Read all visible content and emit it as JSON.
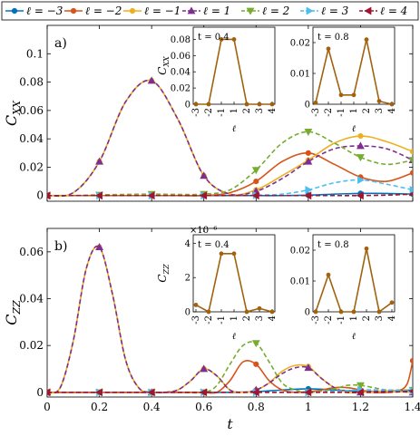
{
  "legend": {
    "entries": [
      {
        "label": "ℓ = −3",
        "color": "#0072BD",
        "marker": "circle",
        "dash": false
      },
      {
        "label": "ℓ = −2",
        "color": "#D95319",
        "marker": "circle",
        "dash": false
      },
      {
        "label": "ℓ = −1",
        "color": "#EDB120",
        "marker": "circle",
        "dash": false
      },
      {
        "label": "ℓ = 1",
        "color": "#7E2F8E",
        "marker": "triangle-up",
        "dash": true
      },
      {
        "label": "ℓ = 2",
        "color": "#77AC30",
        "marker": "triangle-down",
        "dash": true
      },
      {
        "label": "ℓ = 3",
        "color": "#4DBEEE",
        "marker": "triangle-right",
        "dash": true
      },
      {
        "label": "ℓ = 4",
        "color": "#A2142F",
        "marker": "triangle-left",
        "dash": true
      }
    ]
  },
  "chart_data": [
    {
      "panel": "a)",
      "type": "line",
      "ylabel": "C_XX",
      "xlabel": "",
      "xlim": [
        0,
        1.4
      ],
      "ylim": [
        -0.004,
        0.12
      ],
      "xticks": [
        "0",
        "0.2",
        "0.4",
        "0.6",
        "0.8",
        "1",
        "1.2",
        "1.4"
      ],
      "yticks": [
        {
          "v": 0,
          "t": "0"
        },
        {
          "v": 0.02,
          "t": "0.02"
        },
        {
          "v": 0.04,
          "t": "0.04"
        },
        {
          "v": 0.06,
          "t": "0.06"
        },
        {
          "v": 0.08,
          "t": "0.08"
        },
        {
          "v": 0.1,
          "t": "0.1"
        }
      ],
      "series": [
        {
          "name": "ℓ = −3",
          "x": [
            0,
            0.1,
            0.2,
            0.3,
            0.4,
            0.5,
            0.6,
            0.7,
            0.8,
            0.9,
            1.0,
            1.1,
            1.2,
            1.3,
            1.4
          ],
          "y": [
            0,
            0,
            0,
            0,
            0,
            0,
            0,
            0,
            0,
            0,
            0.0003,
            0.001,
            0.0015,
            0.0015,
            0.001
          ]
        },
        {
          "name": "ℓ = −2",
          "x": [
            0,
            0.1,
            0.2,
            0.3,
            0.4,
            0.5,
            0.6,
            0.7,
            0.8,
            0.9,
            1.0,
            1.1,
            1.2,
            1.3,
            1.4
          ],
          "y": [
            0,
            0,
            0,
            0,
            0,
            0,
            0,
            0.002,
            0.01,
            0.024,
            0.03,
            0.022,
            0.013,
            0.01,
            0.016
          ]
        },
        {
          "name": "ℓ = −1",
          "x": [
            0,
            0.1,
            0.2,
            0.3,
            0.4,
            0.5,
            0.6,
            0.7,
            0.8,
            0.9,
            1.0,
            1.1,
            1.2,
            1.3,
            1.4
          ],
          "y": [
            0,
            0.002,
            0.024,
            0.066,
            0.081,
            0.054,
            0.014,
            0.001,
            0.004,
            0.014,
            0.025,
            0.037,
            0.042,
            0.038,
            0.031
          ]
        },
        {
          "name": "ℓ = 1",
          "x": [
            0,
            0.1,
            0.2,
            0.3,
            0.4,
            0.5,
            0.6,
            0.7,
            0.8,
            0.9,
            1.0,
            1.1,
            1.2,
            1.3,
            1.4
          ],
          "y": [
            0,
            0.002,
            0.024,
            0.066,
            0.081,
            0.054,
            0.014,
            0.001,
            0.003,
            0.012,
            0.024,
            0.033,
            0.035,
            0.033,
            0.025
          ]
        },
        {
          "name": "ℓ = 2",
          "x": [
            0,
            0.1,
            0.2,
            0.3,
            0.4,
            0.5,
            0.6,
            0.7,
            0.8,
            0.9,
            1.0,
            1.1,
            1.2,
            1.3,
            1.4
          ],
          "y": [
            0,
            0,
            0.0005,
            0.0008,
            0.001,
            0.0008,
            0.001,
            0.004,
            0.018,
            0.037,
            0.045,
            0.037,
            0.027,
            0.022,
            0.025
          ]
        },
        {
          "name": "ℓ = 3",
          "x": [
            0,
            0.1,
            0.2,
            0.3,
            0.4,
            0.5,
            0.6,
            0.7,
            0.8,
            0.9,
            1.0,
            1.1,
            1.2,
            1.3,
            1.4
          ],
          "y": [
            0,
            0,
            0,
            0,
            0,
            0,
            0,
            0,
            0.0003,
            0.001,
            0.004,
            0.009,
            0.011,
            0.008,
            0.004
          ]
        },
        {
          "name": "ℓ = 4",
          "x": [
            0,
            0.1,
            0.2,
            0.3,
            0.4,
            0.5,
            0.6,
            0.7,
            0.8,
            0.9,
            1.0,
            1.1,
            1.2,
            1.3,
            1.4
          ],
          "y": [
            0,
            0,
            0,
            0,
            0,
            0,
            0,
            0,
            0,
            0,
            0,
            0,
            0,
            0.0003,
            0.001
          ]
        }
      ],
      "insets": [
        {
          "t_label": "t = 0.4",
          "ylabel": "C_XX",
          "xlabel": "ℓ",
          "ylim": [
            0,
            0.095
          ],
          "yticks": [
            {
              "v": 0,
              "t": "0"
            },
            {
              "v": 0.02,
              "t": "0.02"
            },
            {
              "v": 0.04,
              "t": "0.04"
            },
            {
              "v": 0.06,
              "t": "0.06"
            },
            {
              "v": 0.08,
              "t": "0.08"
            }
          ],
          "categories": [
            "-3",
            "-2",
            "-1",
            "1",
            "2",
            "3",
            "4"
          ],
          "values": [
            0,
            0,
            0.08,
            0.08,
            0,
            0,
            0
          ]
        },
        {
          "t_label": "t = 0.8",
          "ylabel": "",
          "xlabel": "ℓ",
          "ylim": [
            0,
            0.025
          ],
          "yticks": [
            {
              "v": 0,
              "t": "0"
            },
            {
              "v": 0.01,
              "t": "0.01"
            },
            {
              "v": 0.02,
              "t": "0.02"
            }
          ],
          "categories": [
            "-3",
            "-2",
            "-1",
            "1",
            "2",
            "3",
            "4"
          ],
          "values": [
            0.0005,
            0.018,
            0.003,
            0.003,
            0.021,
            0.001,
            0
          ]
        }
      ]
    },
    {
      "panel": "b)",
      "type": "line",
      "ylabel": "C_ZZ",
      "xlabel": "t",
      "xlim": [
        0,
        1.4
      ],
      "ylim": [
        -0.002,
        0.07
      ],
      "xticks": [
        "0",
        "0.2",
        "0.4",
        "0.6",
        "0.8",
        "1",
        "1.2",
        "1.4"
      ],
      "yticks": [
        {
          "v": 0,
          "t": "0"
        },
        {
          "v": 0.02,
          "t": "0.02"
        },
        {
          "v": 0.04,
          "t": "0.04"
        },
        {
          "v": 0.06,
          "t": "0.06"
        }
      ],
      "series": [
        {
          "name": "ℓ = −3",
          "x": [
            0,
            0.1,
            0.2,
            0.3,
            0.4,
            0.5,
            0.6,
            0.7,
            0.8,
            0.9,
            1.0,
            1.1,
            1.2,
            1.3,
            1.4
          ],
          "y": [
            0,
            0,
            0,
            0,
            0,
            0,
            0,
            0,
            0.0003,
            0.001,
            0.0015,
            0.001,
            0.0005,
            0.0005,
            0.001
          ]
        },
        {
          "name": "ℓ = −2",
          "x": [
            0,
            0.05,
            0.1,
            0.15,
            0.2,
            0.25,
            0.3,
            0.35,
            0.4,
            0.5,
            0.55,
            0.6,
            0.65,
            0.7,
            0.75,
            0.8,
            0.85,
            0.9,
            0.95,
            1.0,
            1.05,
            1.1,
            1.15,
            1.2,
            1.25,
            1.3,
            1.35,
            1.38,
            1.4
          ],
          "y": [
            0,
            0,
            0,
            0,
            0,
            0,
            0,
            0,
            0,
            0,
            0,
            0,
            0,
            0.005,
            0.013,
            0.012,
            0.005,
            0.001,
            0,
            0.0003,
            0.001,
            0.002,
            0.002,
            0.001,
            0,
            0,
            0.0008,
            0.004,
            0.0135
          ]
        },
        {
          "name": "ℓ = −1",
          "x": [
            0,
            0.05,
            0.1,
            0.15,
            0.2,
            0.25,
            0.3,
            0.35,
            0.4,
            0.45,
            0.5,
            0.55,
            0.6,
            0.65,
            0.7,
            0.75,
            0.8,
            0.85,
            0.9,
            0.95,
            1.0,
            1.05,
            1.1,
            1.15,
            1.2,
            1.25,
            1.3,
            1.35,
            1.4
          ],
          "y": [
            0,
            0.002,
            0.022,
            0.053,
            0.062,
            0.042,
            0.014,
            0.002,
            0,
            0,
            0.001,
            0.005,
            0.01,
            0.007,
            0.001,
            0,
            0.001,
            0.004,
            0.009,
            0.0115,
            0.011,
            0.006,
            0.002,
            0,
            0,
            0.0003,
            0.0005,
            0.0003,
            0
          ]
        },
        {
          "name": "ℓ = 1",
          "x": [
            0,
            0.05,
            0.1,
            0.15,
            0.2,
            0.25,
            0.3,
            0.35,
            0.4,
            0.45,
            0.5,
            0.55,
            0.6,
            0.65,
            0.7,
            0.75,
            0.8,
            0.85,
            0.9,
            0.95,
            1.0,
            1.05,
            1.1,
            1.15,
            1.2,
            1.25,
            1.3,
            1.35,
            1.4
          ],
          "y": [
            0,
            0.002,
            0.022,
            0.053,
            0.062,
            0.042,
            0.014,
            0.002,
            0,
            0,
            0.001,
            0.005,
            0.01,
            0.007,
            0.001,
            0,
            0.001,
            0.004,
            0.008,
            0.0105,
            0.0105,
            0.006,
            0.002,
            0,
            0,
            0.0003,
            0.0005,
            0.0003,
            0
          ]
        },
        {
          "name": "ℓ = 2",
          "x": [
            0,
            0.1,
            0.2,
            0.3,
            0.4,
            0.5,
            0.6,
            0.65,
            0.7,
            0.75,
            0.8,
            0.85,
            0.9,
            0.95,
            1.0,
            1.05,
            1.1,
            1.15,
            1.2,
            1.25,
            1.3,
            1.35,
            1.4
          ],
          "y": [
            0,
            0,
            0,
            0,
            0,
            0,
            0,
            0.003,
            0.012,
            0.02,
            0.021,
            0.013,
            0.004,
            0.001,
            0,
            0.0005,
            0.0015,
            0.003,
            0.003,
            0.002,
            0.001,
            0.001,
            0.001
          ]
        },
        {
          "name": "ℓ = 3",
          "x": [
            0,
            0.1,
            0.2,
            0.3,
            0.4,
            0.5,
            0.6,
            0.7,
            0.8,
            0.9,
            1.0,
            1.1,
            1.2,
            1.3,
            1.4
          ],
          "y": [
            0,
            0,
            0,
            0,
            0,
            0,
            0,
            0,
            0,
            0,
            0,
            0.0005,
            0.001,
            0.001,
            0.0005
          ]
        },
        {
          "name": "ℓ = 4",
          "x": [
            0,
            0.1,
            0.2,
            0.3,
            0.4,
            0.5,
            0.6,
            0.7,
            0.8,
            0.9,
            1.0,
            1.1,
            1.2,
            1.3,
            1.4
          ],
          "y": [
            0,
            0,
            0,
            0,
            0,
            0,
            0,
            0,
            0,
            0,
            0,
            0,
            0,
            0,
            0.0005
          ]
        }
      ],
      "insets": [
        {
          "t_label": "t = 0.4",
          "ylabel": "C_ZZ",
          "xlabel": "ℓ",
          "ylim": [
            0,
            4.5e-06
          ],
          "exponent_label": "×10⁻⁶",
          "yticks": [
            {
              "v": 0,
              "t": "0"
            },
            {
              "v": 2e-06,
              "t": "2"
            },
            {
              "v": 4e-06,
              "t": "4"
            }
          ],
          "categories": [
            "-3",
            "-2",
            "-1",
            "1",
            "2",
            "3",
            "4"
          ],
          "values": [
            4e-07,
            0,
            3.4e-06,
            3.4e-06,
            0,
            2e-07,
            0
          ]
        },
        {
          "t_label": "t = 0.8",
          "ylabel": "",
          "xlabel": "ℓ",
          "ylim": [
            0,
            0.025
          ],
          "yticks": [
            {
              "v": 0,
              "t": "0"
            },
            {
              "v": 0.01,
              "t": "0.01"
            },
            {
              "v": 0.02,
              "t": "0.02"
            }
          ],
          "categories": [
            "-3",
            "-2",
            "-1",
            "1",
            "2",
            "3",
            "4"
          ],
          "values": [
            0,
            0.012,
            0,
            0,
            0.0205,
            0,
            0.003
          ]
        }
      ]
    }
  ]
}
